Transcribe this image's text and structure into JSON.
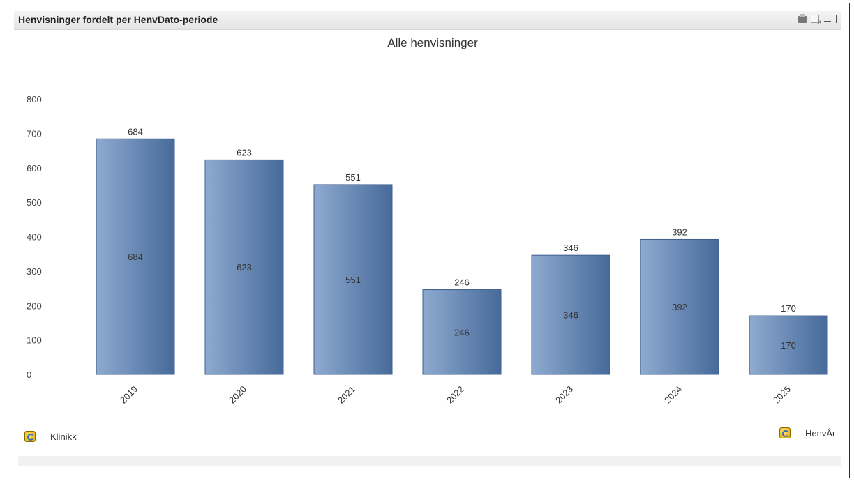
{
  "caption": {
    "title": "Henvisninger fordelt per HenvDato-periode",
    "icons": [
      "print-icon",
      "export-excel-icon",
      "minimize-icon",
      "maximize-icon"
    ]
  },
  "dimensions": {
    "year_label": "HenvÅr",
    "clinic_label": "Klinikk"
  },
  "chart_data": {
    "type": "bar",
    "title": "Alle henvisninger",
    "xlabel": "",
    "ylabel": "",
    "categories": [
      "2019",
      "2020",
      "2021",
      "2022",
      "2023",
      "2024",
      "2025"
    ],
    "values": [
      684,
      623,
      551,
      246,
      346,
      392,
      170
    ],
    "yticks": [
      0,
      100,
      200,
      300,
      400,
      500,
      600,
      700,
      800
    ],
    "ylim": [
      0,
      800
    ],
    "grid": false,
    "legend": "none",
    "bar_color_light": "#8eaad0",
    "bar_color_dark": "#466a9a",
    "value_labels": "top-and-inside"
  }
}
